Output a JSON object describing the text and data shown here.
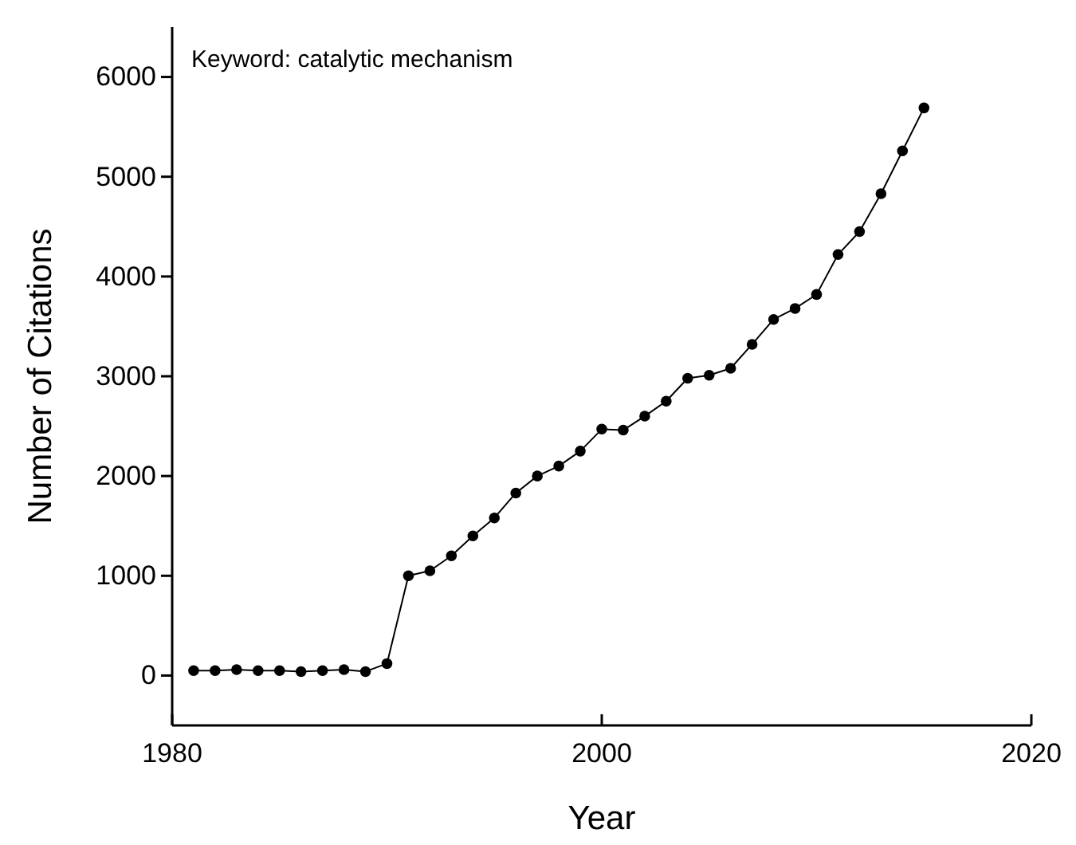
{
  "chart_data": {
    "type": "line",
    "xlabel": "Year",
    "ylabel": "Number of Citations",
    "annotations": [
      "Keyword: catalytic mechanism"
    ],
    "x": [
      1981,
      1982,
      1983,
      1984,
      1985,
      1986,
      1987,
      1988,
      1989,
      1990,
      1991,
      1992,
      1993,
      1994,
      1995,
      1996,
      1997,
      1998,
      1999,
      2000,
      2001,
      2002,
      2003,
      2004,
      2005,
      2006,
      2007,
      2008,
      2009,
      2010,
      2011,
      2012,
      2013,
      2014,
      2015
    ],
    "series": [
      {
        "color": "#000000",
        "values": [
          50,
          50,
          60,
          50,
          50,
          40,
          50,
          60,
          40,
          120,
          1000,
          1050,
          1200,
          1400,
          1580,
          1830,
          2000,
          2100,
          2250,
          2470,
          2460,
          2600,
          2750,
          2980,
          3010,
          3080,
          3320,
          3570,
          3680,
          3820,
          4220,
          4450,
          4830,
          5260,
          5690
        ]
      }
    ],
    "xlim": [
      1980,
      2020
    ],
    "xticks": [
      1980,
      2000,
      2020
    ],
    "ylim": [
      -500,
      6500
    ],
    "yticks": [
      0,
      1000,
      2000,
      3000,
      4000,
      5000,
      6000
    ],
    "marker": "circle",
    "line_style": "solid",
    "grid": false
  }
}
